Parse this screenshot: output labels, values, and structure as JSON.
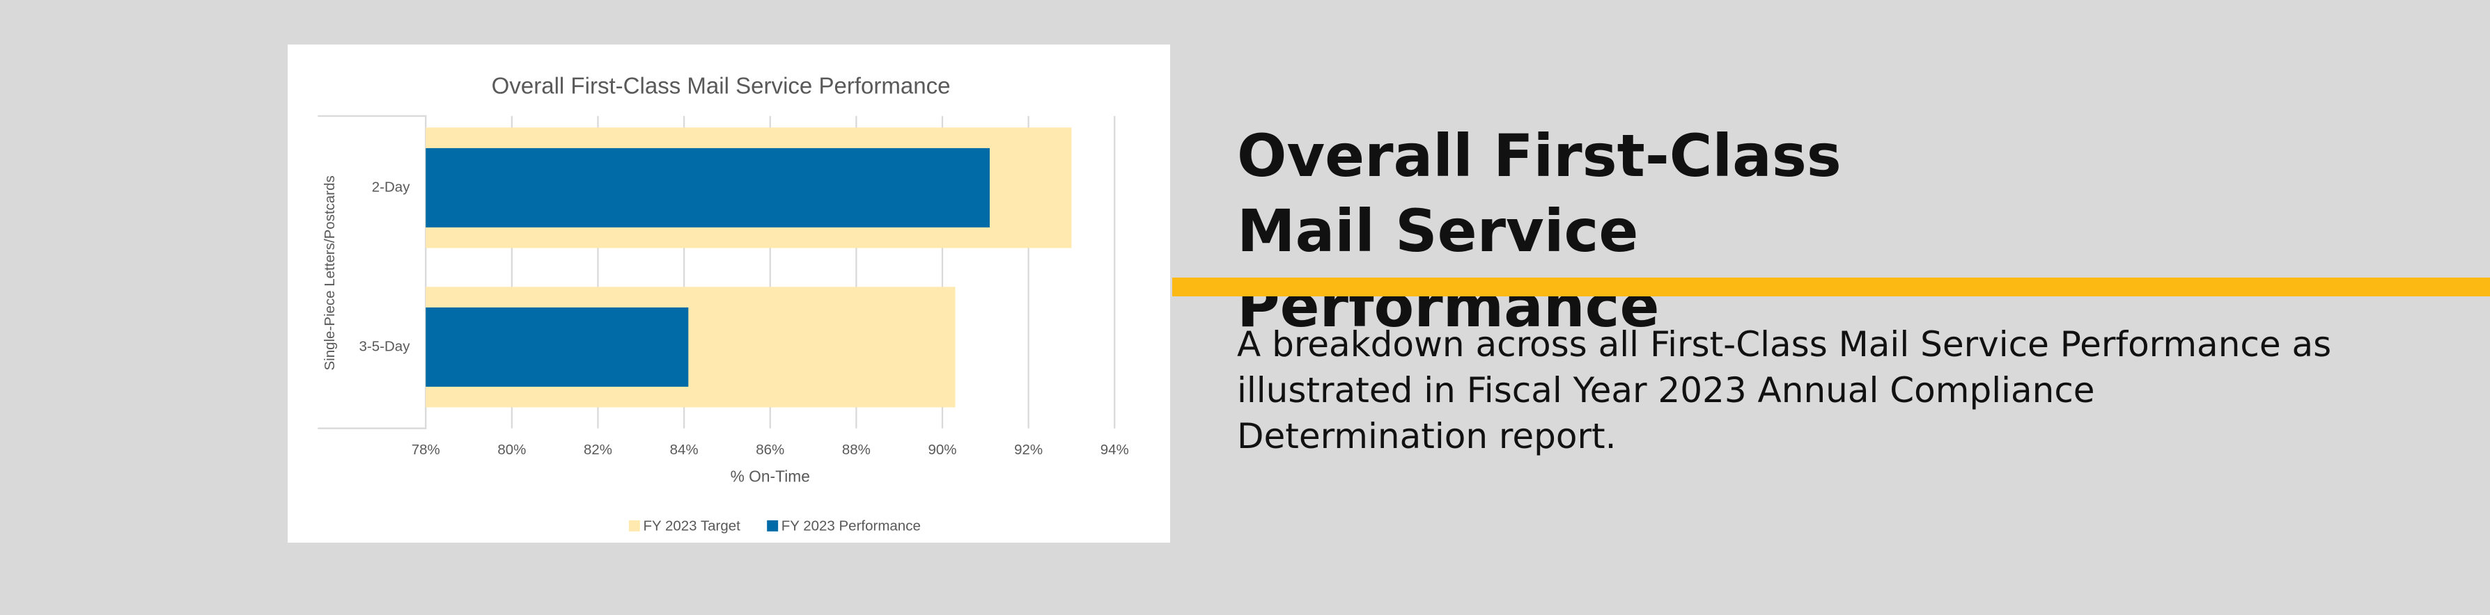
{
  "heading": "Overall First-Class Mail Service Performance",
  "description": "A breakdown across all First-Class Mail Service Performance as illustrated in Fiscal Year 2023 Annual Compliance Determination report.",
  "chart_data": {
    "type": "bar",
    "orientation": "horizontal",
    "overlap": true,
    "title": "Overall First-Class Mail Service Performance",
    "group_label": "Single-Piece Letters/Postcards",
    "categories": [
      "2-Day",
      "3-5-Day"
    ],
    "x_label": "% On-Time",
    "series": [
      {
        "name": "FY 2023 Target",
        "color": "#ffe9af",
        "values": [
          93.0,
          90.3
        ]
      },
      {
        "name": "FY 2023 Performance",
        "color": "#006ba6",
        "values": [
          91.1,
          84.1
        ]
      }
    ],
    "xlim": [
      78,
      94
    ],
    "xticks": [
      {
        "value": 78,
        "label": "78%"
      },
      {
        "value": 80,
        "label": "80%"
      },
      {
        "value": 82,
        "label": "82%"
      },
      {
        "value": 84,
        "label": "84%"
      },
      {
        "value": 86,
        "label": "86%"
      },
      {
        "value": 88,
        "label": "88%"
      },
      {
        "value": 90,
        "label": "90%"
      },
      {
        "value": 92,
        "label": "92%"
      },
      {
        "value": 94,
        "label": "94%"
      }
    ],
    "grid": true,
    "legend": "bottom"
  }
}
